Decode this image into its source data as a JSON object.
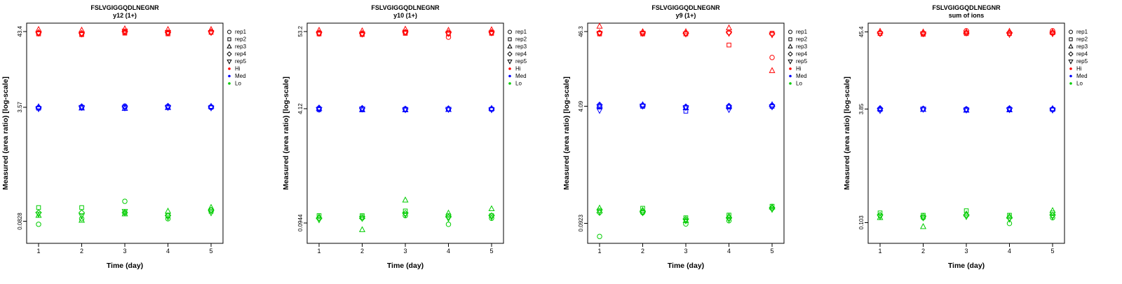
{
  "figure": {
    "ylabel": "Measured (area ratio) [log-scale]",
    "xlabel": "Time (day)",
    "xticks": [
      "1",
      "2",
      "3",
      "4",
      "5"
    ],
    "legend": {
      "reps": [
        {
          "label": "rep1",
          "symbol": "circle"
        },
        {
          "label": "rep2",
          "symbol": "square"
        },
        {
          "label": "rep3",
          "symbol": "triangle-up"
        },
        {
          "label": "rep4",
          "symbol": "diamond"
        },
        {
          "label": "rep5",
          "symbol": "triangle-down"
        }
      ],
      "groups": [
        {
          "label": "Hi",
          "color": "#FF0000"
        },
        {
          "label": "Med",
          "color": "#0000FF"
        },
        {
          "label": "Lo",
          "color": "#00CC00"
        }
      ]
    }
  },
  "chart_data": [
    {
      "type": "scatter",
      "title": "FSLVGIGGQDLNEGNR",
      "subtitle": "y12 (1+)",
      "xlabel": "Time (day)",
      "ylabel": "Measured (area ratio) [log-scale]",
      "x": [
        1,
        2,
        3,
        4,
        5
      ],
      "ylim": [
        0.04,
        57
      ],
      "yticks": [
        {
          "value": 43.4,
          "label": "43.4"
        },
        {
          "value": 3.57,
          "label": "3.57"
        },
        {
          "value": 0.0828,
          "label": "0.0828"
        }
      ],
      "groups": [
        {
          "name": "Hi",
          "color": "#FF0000",
          "reps": [
            [
              41,
              40,
              42,
              41,
              43
            ],
            [
              40,
              39,
              41,
              40,
              42
            ],
            [
              46,
              45,
              47,
              46,
              46
            ],
            [
              42,
              41,
              43,
              42,
              43
            ],
            [
              41,
              40,
              44,
              42,
              42
            ]
          ]
        },
        {
          "name": "Med",
          "color": "#0000FF",
          "reps": [
            [
              3.5,
              3.6,
              3.7,
              3.65,
              3.6
            ],
            [
              3.45,
              3.5,
              3.55,
              3.6,
              3.55
            ],
            [
              3.6,
              3.45,
              3.4,
              3.5,
              3.65
            ],
            [
              3.55,
              3.65,
              3.6,
              3.7,
              3.6
            ],
            [
              3.4,
              3.55,
              3.5,
              3.55,
              3.5
            ]
          ]
        },
        {
          "name": "Lo",
          "color": "#00CC00",
          "reps": [
            [
              0.075,
              0.09,
              0.16,
              0.09,
              0.12
            ],
            [
              0.13,
              0.13,
              0.11,
              0.1,
              0.115
            ],
            [
              0.1,
              0.085,
              0.105,
              0.115,
              0.13
            ],
            [
              0.11,
              0.11,
              0.11,
              0.1,
              0.12
            ],
            [
              0.105,
              0.1,
              0.115,
              0.095,
              0.11
            ]
          ]
        }
      ]
    },
    {
      "type": "scatter",
      "title": "FSLVGIGGQDLNEGNR",
      "subtitle": "y10 (1+)",
      "xlabel": "Time (day)",
      "ylabel": "Measured (area ratio) [log-scale]",
      "x": [
        1,
        2,
        3,
        4,
        5
      ],
      "ylim": [
        0.048,
        70
      ],
      "yticks": [
        {
          "value": 53.2,
          "label": "53.2"
        },
        {
          "value": 4.12,
          "label": "4.12"
        },
        {
          "value": 0.0944,
          "label": "0.0944"
        }
      ],
      "groups": [
        {
          "name": "Hi",
          "color": "#FF0000",
          "reps": [
            [
              50,
              49,
              51,
              44,
              51
            ],
            [
              49,
              48,
              50,
              49,
              50
            ],
            [
              55,
              54,
              57,
              55,
              56
            ],
            [
              51,
              50,
              52,
              51,
              52
            ],
            [
              50,
              49,
              52,
              50,
              51
            ]
          ]
        },
        {
          "name": "Med",
          "color": "#0000FF",
          "reps": [
            [
              4.1,
              4.15,
              4.1,
              4.1,
              4.1
            ],
            [
              4.0,
              4.05,
              4.05,
              4.05,
              4.05
            ],
            [
              4.15,
              3.95,
              3.95,
              4.0,
              4.15
            ],
            [
              4.25,
              4.2,
              4.1,
              4.15,
              4.1
            ],
            [
              4.05,
              4.1,
              4.0,
              4.05,
              4.0
            ]
          ]
        },
        {
          "name": "Lo",
          "color": "#00CC00",
          "reps": [
            [
              0.11,
              0.115,
              0.12,
              0.09,
              0.11
            ],
            [
              0.12,
              0.12,
              0.14,
              0.12,
              0.12
            ],
            [
              0.115,
              0.075,
              0.2,
              0.13,
              0.15
            ],
            [
              0.11,
              0.11,
              0.13,
              0.115,
              0.12
            ],
            [
              0.105,
              0.11,
              0.125,
              0.11,
              0.115
            ]
          ]
        }
      ]
    },
    {
      "type": "scatter",
      "title": "FSLVGIGGQDLNEGNR",
      "subtitle": "y9 (1+)",
      "xlabel": "Time (day)",
      "ylabel": "Measured (area ratio) [log-scale]",
      "x": [
        1,
        2,
        3,
        4,
        5
      ],
      "ylim": [
        0.048,
        61
      ],
      "yticks": [
        {
          "value": 46.3,
          "label": "46.3"
        },
        {
          "value": 4.09,
          "label": "4.09"
        },
        {
          "value": 0.0923,
          "label": "0.0923"
        }
      ],
      "groups": [
        {
          "name": "Hi",
          "color": "#FF0000",
          "reps": [
            [
              44,
              44,
              44,
              45,
              20
            ],
            [
              43,
              43,
              43,
              30,
              44
            ],
            [
              55,
              46,
              46,
              52,
              13
            ],
            [
              45,
              45,
              44,
              45,
              43
            ],
            [
              44,
              44,
              43,
              44,
              42
            ]
          ]
        },
        {
          "name": "Med",
          "color": "#0000FF",
          "reps": [
            [
              4.1,
              4.2,
              4.0,
              4.1,
              4.2
            ],
            [
              4.0,
              4.1,
              3.5,
              4.0,
              4.1
            ],
            [
              4.2,
              4.3,
              3.9,
              4.05,
              4.3
            ],
            [
              4.3,
              4.25,
              4.05,
              4.15,
              4.15
            ],
            [
              3.6,
              4.15,
              3.95,
              3.7,
              4.05
            ]
          ]
        },
        {
          "name": "Lo",
          "color": "#00CC00",
          "reps": [
            [
              0.06,
              0.13,
              0.09,
              0.1,
              0.15
            ],
            [
              0.14,
              0.15,
              0.11,
              0.12,
              0.16
            ],
            [
              0.15,
              0.14,
              0.1,
              0.115,
              0.155
            ],
            [
              0.13,
              0.135,
              0.105,
              0.11,
              0.15
            ],
            [
              0.135,
              0.13,
              0.1,
              0.105,
              0.145
            ]
          ]
        }
      ]
    },
    {
      "type": "scatter",
      "title": "FSLVGIGGQDLNEGNR",
      "subtitle": "sum of ions",
      "xlabel": "Time (day)",
      "ylabel": "Measured (area ratio) [log-scale]",
      "x": [
        1,
        2,
        3,
        4,
        5
      ],
      "ylim": [
        0.053,
        60
      ],
      "yticks": [
        {
          "value": 45.4,
          "label": "45.4"
        },
        {
          "value": 3.85,
          "label": "3.85"
        },
        {
          "value": 0.103,
          "label": "0.103"
        }
      ],
      "groups": [
        {
          "name": "Hi",
          "color": "#FF0000",
          "reps": [
            [
              44,
              43,
              47,
              44,
              47
            ],
            [
              43,
              42,
              43,
              43,
              44
            ],
            [
              46,
              45,
              45,
              46,
              45
            ],
            [
              44,
              44,
              44,
              44,
              44
            ],
            [
              43,
              43,
              44,
              42,
              43
            ]
          ]
        },
        {
          "name": "Med",
          "color": "#0000FF",
          "reps": [
            [
              3.85,
              3.9,
              3.85,
              3.9,
              3.85
            ],
            [
              3.8,
              3.85,
              3.8,
              3.85,
              3.8
            ],
            [
              3.9,
              3.8,
              3.7,
              3.75,
              3.9
            ],
            [
              3.95,
              3.9,
              3.85,
              3.95,
              3.85
            ],
            [
              3.7,
              3.85,
              3.75,
              3.8,
              3.75
            ]
          ]
        },
        {
          "name": "Lo",
          "color": "#00CC00",
          "reps": [
            [
              0.13,
              0.12,
              0.13,
              0.1,
              0.12
            ],
            [
              0.14,
              0.13,
              0.15,
              0.13,
              0.14
            ],
            [
              0.12,
              0.09,
              0.135,
              0.125,
              0.15
            ],
            [
              0.13,
              0.125,
              0.13,
              0.12,
              0.13
            ],
            [
              0.125,
              0.12,
              0.125,
              0.115,
              0.125
            ]
          ]
        }
      ]
    }
  ]
}
